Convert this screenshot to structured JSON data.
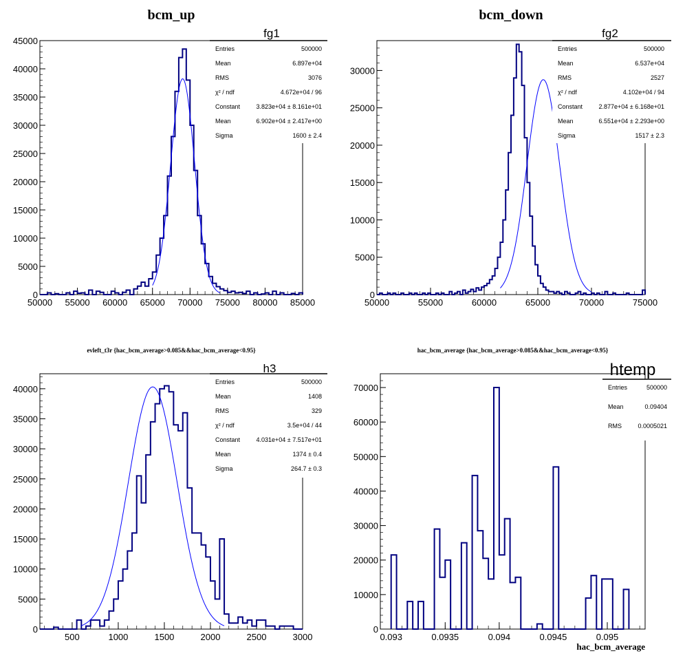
{
  "colors": {
    "hist": "#000080",
    "fit": "#0000ff",
    "frame": "#000000"
  },
  "chart_data": [
    {
      "type": "bar",
      "title": "bcm_up",
      "name": "fg1",
      "xlim": [
        50000,
        85000
      ],
      "ylim": [
        0,
        45000
      ],
      "xticks": [
        "50000",
        "55000",
        "60000",
        "65000",
        "70000",
        "75000",
        "80000",
        "85000"
      ],
      "yticks": [
        "0",
        "5000",
        "10000",
        "15000",
        "20000",
        "25000",
        "30000",
        "35000",
        "40000",
        "45000"
      ],
      "xlabel": "",
      "bins": {
        "start": 50000,
        "width": 500,
        "values": [
          0,
          0,
          300,
          0,
          150,
          0,
          0,
          300,
          0,
          600,
          250,
          300,
          0,
          800,
          0,
          600,
          400,
          0,
          0,
          600,
          300,
          0,
          400,
          800,
          0,
          1000,
          1500,
          2200,
          1500,
          2800,
          4000,
          7000,
          10000,
          14000,
          21000,
          28000,
          36000,
          42000,
          43500,
          38000,
          30000,
          22000,
          14000,
          9000,
          5500,
          3200,
          2000,
          1400,
          1000,
          700,
          400,
          600,
          300,
          400,
          200,
          600,
          0,
          300,
          0,
          100,
          300,
          0,
          600,
          0,
          300,
          0,
          0,
          200,
          0,
          300
        ],
        "min": 0,
        "max": 43500
      },
      "fit": {
        "constant": 38230,
        "mean": 69020,
        "sigma": 1600,
        "xrange": [
          65000,
          74000
        ]
      },
      "stats": [
        [
          "Entries",
          "500000"
        ],
        [
          "Mean",
          "6.897e+04"
        ],
        [
          "RMS",
          "3076"
        ],
        [
          "χ² / ndf",
          "4.672e+04 / 96"
        ],
        [
          "Constant",
          "3.823e+04 ± 8.161e+01"
        ],
        [
          "Mean",
          "6.902e+04 ± 2.417e+00"
        ],
        [
          "Sigma",
          "1600 ± 2.4"
        ]
      ]
    },
    {
      "type": "bar",
      "title": "bcm_down",
      "name": "fg2",
      "xlim": [
        50000,
        75000
      ],
      "ylim": [
        0,
        34000
      ],
      "xticks": [
        "50000",
        "55000",
        "60000",
        "65000",
        "70000",
        "75000"
      ],
      "yticks": [
        "0",
        "5000",
        "10000",
        "15000",
        "20000",
        "25000",
        "30000"
      ],
      "xlabel": "",
      "bins": {
        "start": 50000,
        "width": 250,
        "values": [
          0,
          200,
          0,
          0,
          200,
          0,
          200,
          0,
          0,
          200,
          0,
          0,
          200,
          0,
          200,
          0,
          0,
          200,
          0,
          200,
          0,
          0,
          200,
          0,
          200,
          0,
          0,
          400,
          0,
          200,
          400,
          0,
          600,
          200,
          400,
          700,
          400,
          900,
          600,
          1000,
          1200,
          1500,
          2000,
          2500,
          3500,
          5000,
          7000,
          10000,
          14000,
          19000,
          24000,
          29000,
          33500,
          32500,
          28000,
          21000,
          15000,
          10500,
          6500,
          4000,
          2500,
          1500,
          1000,
          600,
          400,
          400,
          200,
          400,
          200,
          0,
          400,
          200,
          0,
          0,
          200,
          400,
          0,
          200,
          0,
          0,
          200,
          0,
          200,
          0,
          0,
          400,
          0,
          0,
          200,
          0,
          0,
          0,
          0,
          200,
          0,
          0,
          0,
          0,
          0,
          600
        ],
        "min": 0,
        "max": 33500
      },
      "fit": {
        "constant": 28770,
        "mean": 65510,
        "sigma": 1517,
        "xrange": [
          61500,
          70000
        ]
      },
      "stats": [
        [
          "Entries",
          "500000"
        ],
        [
          "Mean",
          "6.537e+04"
        ],
        [
          "RMS",
          "2527"
        ],
        [
          "χ² / ndf",
          "4.102e+04 / 94"
        ],
        [
          "Constant",
          "2.877e+04 ± 6.168e+01"
        ],
        [
          "Mean",
          "6.551e+04 ± 2.293e+00"
        ],
        [
          "Sigma",
          "1517 ± 2.3"
        ]
      ]
    },
    {
      "type": "bar",
      "title": "evleft_t3r {hac_bcm_average>0.085&&hac_bcm_average<0.95}",
      "name": "h3",
      "xlim": [
        150,
        3000
      ],
      "ylim": [
        0,
        42500
      ],
      "xticks": [
        "500",
        "1000",
        "1500",
        "2000",
        "2500",
        "3000"
      ],
      "yticks": [
        "0",
        "5000",
        "10000",
        "15000",
        "20000",
        "25000",
        "30000",
        "35000",
        "40000"
      ],
      "xlabel": "",
      "bins": {
        "start": 150,
        "width": 50,
        "values": [
          0,
          0,
          0,
          300,
          0,
          0,
          0,
          0,
          1500,
          0,
          500,
          1500,
          1500,
          500,
          1500,
          3000,
          5000,
          8000,
          10000,
          13000,
          16000,
          25500,
          21000,
          29000,
          34500,
          37500,
          40000,
          40500,
          39500,
          34000,
          33000,
          36000,
          23500,
          16000,
          16000,
          14000,
          12000,
          8000,
          5000,
          15000,
          2500,
          1000,
          1000,
          2000,
          1000,
          1500,
          500,
          1500,
          1500,
          500,
          500,
          0,
          500,
          500,
          500,
          0,
          0
        ],
        "min": 0,
        "max": 40500
      },
      "fit": {
        "constant": 40310,
        "mean": 1374,
        "sigma": 264.7,
        "xrange": [
          600,
          2150
        ]
      },
      "stats": [
        [
          "Entries",
          "500000"
        ],
        [
          "Mean",
          "1408"
        ],
        [
          "RMS",
          "329"
        ],
        [
          "χ² / ndf",
          "3.5e+04 / 44"
        ],
        [
          "Constant",
          "4.031e+04 ± 7.517e+01"
        ],
        [
          "Mean",
          "1374 ± 0.4"
        ],
        [
          "Sigma",
          "264.7 ± 0.3"
        ]
      ]
    },
    {
      "type": "bar",
      "title": "hac_bcm_average {hac_bcm_average>0.085&&hac_bcm_average<0.95}",
      "name": "htemp",
      "xlim": [
        0.0929,
        0.09535
      ],
      "ylim": [
        0,
        74000
      ],
      "xticks": [
        "0.093",
        "0.0935",
        "0.094",
        "0.0945",
        "0.095"
      ],
      "yticks": [
        "0",
        "10000",
        "20000",
        "30000",
        "40000",
        "50000",
        "60000",
        "70000"
      ],
      "xlabel": "hac_bcm_average",
      "bins": {
        "start": 0.093,
        "width": 5e-05,
        "values": [
          21500,
          0,
          0,
          8000,
          0,
          8000,
          0,
          0,
          29000,
          15000,
          20000,
          0,
          0,
          25000,
          0,
          44500,
          28500,
          20500,
          14500,
          70000,
          21500,
          32000,
          13500,
          15000,
          0,
          0,
          0,
          1500,
          0,
          0,
          47000,
          0,
          0,
          0,
          0,
          0,
          9000,
          15500,
          0,
          14500,
          14500,
          0,
          0,
          11500
        ],
        "min": 0,
        "max": 70000
      },
      "stats": [
        [
          "Entries",
          "500000"
        ],
        [
          "Mean",
          "0.09404"
        ],
        [
          "RMS",
          "0.0005021"
        ]
      ]
    }
  ]
}
